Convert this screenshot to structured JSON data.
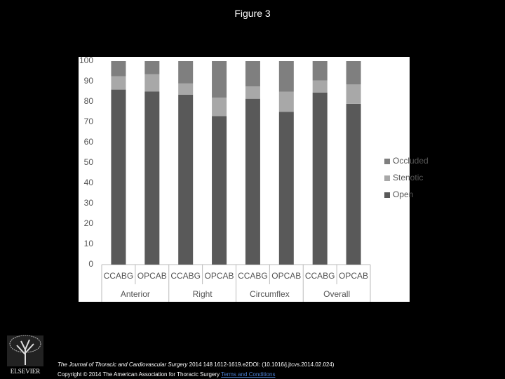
{
  "title": "Figure 3",
  "chart_data": {
    "type": "stacked-bar",
    "categories": [
      "CCABG",
      "OPCAB",
      "CCABG",
      "OPCAB",
      "CCABG",
      "OPCAB",
      "CCABG",
      "OPCAB"
    ],
    "groups": [
      "Anterior",
      "Right",
      "Circumflex",
      "Overall"
    ],
    "series": [
      {
        "name": "Open",
        "color": "#595959",
        "values": [
          86,
          85,
          83.5,
          73,
          81.5,
          75,
          84.5,
          79
        ]
      },
      {
        "name": "Stenotic",
        "color": "#a8a8a8",
        "values": [
          6.5,
          8.5,
          5.5,
          9,
          6,
          10,
          6,
          9.5
        ]
      },
      {
        "name": "Occluded",
        "color": "#7f7f7f",
        "values": [
          7.5,
          6.5,
          11,
          18,
          12.5,
          15,
          9.5,
          11.5
        ]
      }
    ],
    "ylim": [
      0,
      100
    ],
    "yticks": [
      0,
      10,
      20,
      30,
      40,
      50,
      60,
      70,
      80,
      90,
      100
    ],
    "grid": false,
    "legend": "right"
  },
  "footer": {
    "journal": "The Journal of Thoracic and Cardiovascular Surgery",
    "citation": "2014 148 1612-1619.e2DOI: (10.1016/j.jtcvs.2014.02.024)",
    "copyright": "Copyright © 2014 The American Association for Thoracic Surgery",
    "link": "Terms and Conditions",
    "publisher": "ELSEVIER"
  }
}
